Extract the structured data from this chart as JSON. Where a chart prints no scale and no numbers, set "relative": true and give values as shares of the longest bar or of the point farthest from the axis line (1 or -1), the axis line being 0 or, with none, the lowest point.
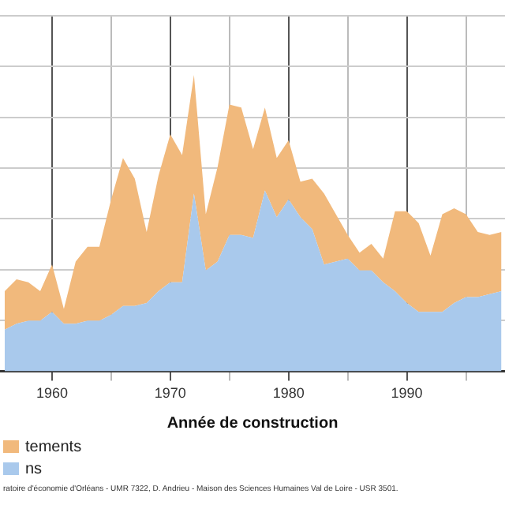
{
  "chart_data": {
    "type": "area",
    "stacked": true,
    "relative": true,
    "xlabel": "Année de construction",
    "x": [
      1956,
      1957,
      1958,
      1959,
      1960,
      1961,
      1962,
      1963,
      1964,
      1965,
      1966,
      1967,
      1968,
      1969,
      1970,
      1971,
      1972,
      1973,
      1974,
      1975,
      1976,
      1977,
      1978,
      1979,
      1980,
      1981,
      1982,
      1983,
      1984,
      1985,
      1986,
      1987,
      1988,
      1989,
      1990,
      1991,
      1992,
      1993,
      1994,
      1995,
      1996,
      1997,
      1998
    ],
    "xlim": [
      1955.6,
      1998.3
    ],
    "xticks": [
      1960,
      {
        "value": 1965,
        "label": null
      },
      1970,
      {
        "value": 1975,
        "label": null
      },
      1980,
      {
        "value": 1985,
        "label": null
      },
      1990,
      {
        "value": 1995,
        "label": null
      }
    ],
    "series": [
      {
        "name": "ns",
        "color": "#a9c9ec",
        "values": [
          0.14,
          0.16,
          0.17,
          0.17,
          0.2,
          0.16,
          0.16,
          0.17,
          0.17,
          0.19,
          0.22,
          0.22,
          0.23,
          0.27,
          0.3,
          0.3,
          0.6,
          0.34,
          0.37,
          0.46,
          0.46,
          0.45,
          0.61,
          0.52,
          0.58,
          0.52,
          0.48,
          0.36,
          0.37,
          0.38,
          0.34,
          0.34,
          0.3,
          0.27,
          0.23,
          0.2,
          0.2,
          0.2,
          0.23,
          0.25,
          0.25,
          0.26,
          0.27
        ]
      },
      {
        "name": "tements",
        "color": "#f1b97c",
        "values": [
          0.13,
          0.15,
          0.13,
          0.1,
          0.16,
          0.05,
          0.21,
          0.25,
          0.25,
          0.39,
          0.5,
          0.43,
          0.24,
          0.39,
          0.5,
          0.43,
          0.4,
          0.19,
          0.32,
          0.44,
          0.43,
          0.3,
          0.28,
          0.2,
          0.2,
          0.12,
          0.17,
          0.24,
          0.16,
          0.08,
          0.06,
          0.09,
          0.08,
          0.27,
          0.31,
          0.3,
          0.19,
          0.33,
          0.32,
          0.28,
          0.22,
          0.2,
          0.2
        ]
      }
    ],
    "grid": true,
    "legend": "bottom left",
    "annotations": [
      "ratoire d'économie d'Orléans - UMR 7322, D. Andrieu - Maison des Sciences Humaines Val de Loire - USR 3501."
    ]
  }
}
